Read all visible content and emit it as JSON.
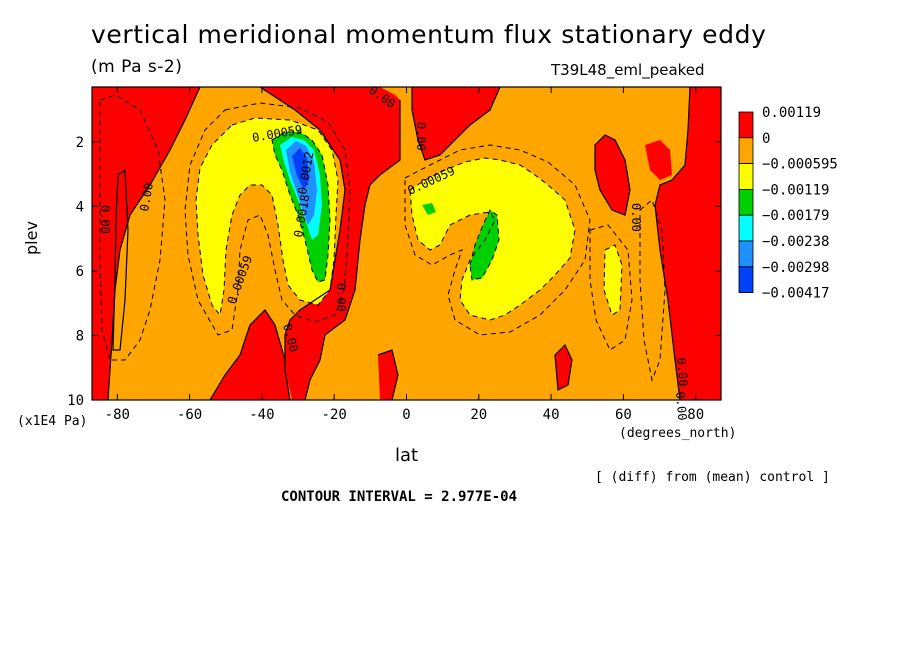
{
  "chart_data": {
    "type": "heatmap",
    "title": "vertical meridional momentum flux stationary eddy",
    "units": "(m Pa s-2)",
    "run_id": "T39L48_eml_peaked",
    "xlabel": "lat",
    "xunit": "(degrees_north)",
    "ylabel": "plev",
    "yunit": "(x1E4 Pa)",
    "xlim": [
      -87,
      87
    ],
    "ylim": [
      10,
      0.3
    ],
    "x_ticks": [
      "-80",
      "-60",
      "-40",
      "-20",
      "0",
      "20",
      "40",
      "60",
      "80"
    ],
    "x_tick_values": [
      -80,
      -60,
      -40,
      -20,
      0,
      20,
      40,
      60,
      80
    ],
    "y_ticks": [
      "2",
      "4",
      "6",
      "8",
      "10"
    ],
    "y_tick_values": [
      2,
      4,
      6,
      8,
      10
    ],
    "legend": {
      "placement": "right",
      "levels": [
        "0.00119",
        "0",
        "−0.000595",
        "−0.00119",
        "−0.00179",
        "−0.00238",
        "−0.00298",
        "−0.00417"
      ],
      "colors": [
        "#ff0000",
        "#ffa500",
        "#ffff00",
        "#00d000",
        "#00ffff",
        "#1e90ff",
        "#0040ff"
      ]
    },
    "contour_labels": [
      "0.00",
      "0.00",
      "0.00",
      "0.00",
      "0.00",
      "0.00",
      "0.00",
      "0.00",
      "0.00059",
      "0.00059",
      "0.00059",
      "0.0018",
      "0.0012",
      "0.00"
    ],
    "field_regions": [
      {
        "level": "positive",
        "color": "#ff0000",
        "x_range": [
          -87,
          -68
        ],
        "y_range": [
          0.3,
          10
        ]
      },
      {
        "level": "positive",
        "color": "#ff0000",
        "x_range": [
          -22,
          0
        ],
        "y_range": [
          2,
          10
        ]
      },
      {
        "level": "positive",
        "color": "#ff0000",
        "x_range": [
          63,
          80
        ],
        "y_range": [
          2.5,
          10
        ]
      },
      {
        "level": "-0.000595",
        "color": "#ffff00",
        "x_range": [
          -58,
          -22
        ],
        "y_range": [
          2,
          8
        ]
      },
      {
        "level": "-0.000595",
        "color": "#ffff00",
        "x_range": [
          3,
          45
        ],
        "y_range": [
          3,
          8
        ]
      },
      {
        "level": "-0.00119",
        "color": "#00d000",
        "x_range": [
          -37,
          -25
        ],
        "y_range": [
          1.7,
          6.2
        ]
      },
      {
        "level": "-0.00119",
        "color": "#00d000",
        "x_range": [
          17,
          25
        ],
        "y_range": [
          4,
          6.2
        ]
      },
      {
        "level": "-0.00238",
        "color": "#1e90ff",
        "x_range": [
          -34,
          -28
        ],
        "y_range": [
          1.8,
          4.5
        ]
      }
    ]
  },
  "footer": {
    "note": "[ (diff) from (mean) control ]",
    "contour_interval": "CONTOUR INTERVAL = 2.977E-04"
  }
}
